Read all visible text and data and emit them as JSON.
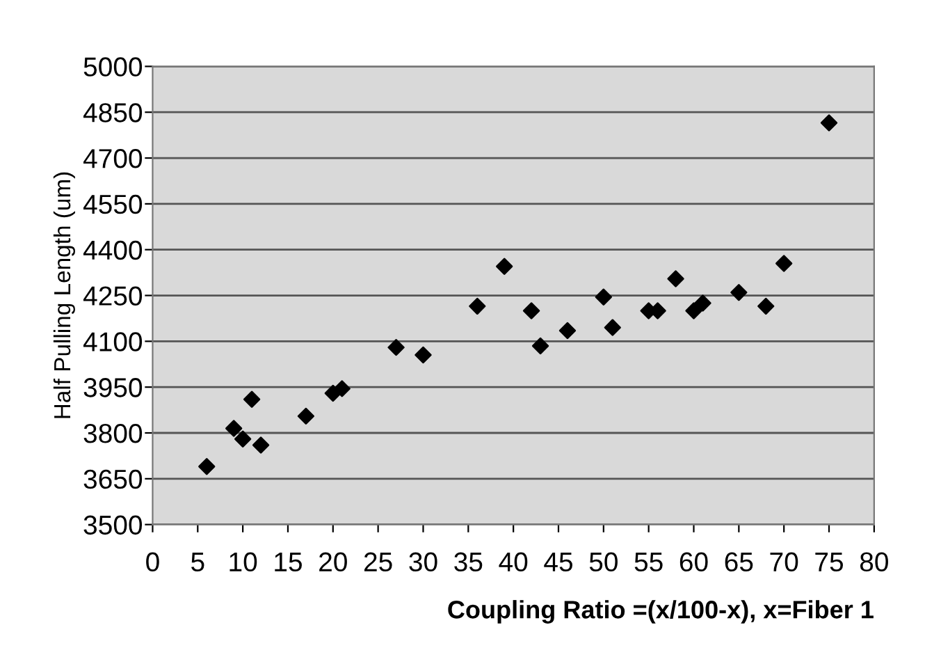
{
  "chart_data": {
    "type": "scatter",
    "xlabel": "Coupling Ratio =(x/100-x), x=Fiber 1",
    "ylabel": "Half Pulling Length (um)",
    "x": [
      6,
      9,
      10,
      11,
      12,
      17,
      20,
      21,
      27,
      30,
      36,
      39,
      42,
      43,
      46,
      50,
      51,
      55,
      56,
      58,
      60,
      61,
      65,
      68,
      70,
      75
    ],
    "series": [
      {
        "color": "#000000",
        "values": [
          3690,
          3815,
          3780,
          3910,
          3760,
          3855,
          3930,
          3945,
          4080,
          4055,
          4215,
          4345,
          4200,
          4085,
          4135,
          4245,
          4145,
          4200,
          4200,
          4305,
          4200,
          4225,
          4260,
          4215,
          4355,
          4815
        ]
      }
    ],
    "marker": "diamond",
    "xlim": [
      0,
      80
    ],
    "xticks": [
      0,
      5,
      10,
      15,
      20,
      25,
      30,
      35,
      40,
      45,
      50,
      55,
      60,
      65,
      70,
      75,
      80
    ],
    "ylim": [
      3500,
      5000
    ],
    "yticks": [
      3500,
      3650,
      3800,
      3950,
      4100,
      4250,
      4400,
      4550,
      4700,
      4850,
      5000
    ],
    "grid": "y"
  }
}
